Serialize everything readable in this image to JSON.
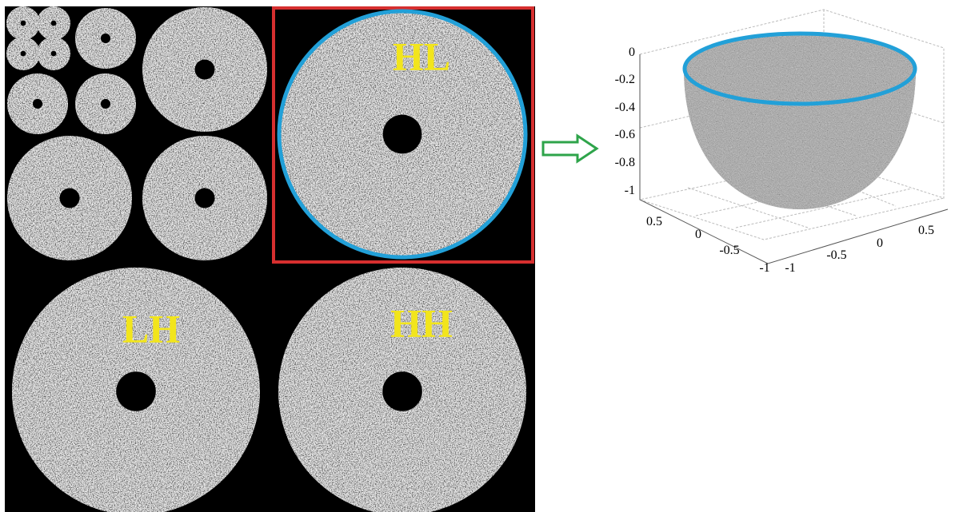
{
  "panels": {
    "hl": "HL",
    "lh": "LH",
    "hh": "HH"
  },
  "plot3d": {
    "z_ticks": [
      "0",
      "-0.2",
      "-0.4",
      "-0.6",
      "-0.8",
      "-1"
    ],
    "x_ticks": [
      "0.5",
      "0",
      "-0.5",
      "-1"
    ],
    "y_ticks": [
      "-1",
      "-0.5",
      "0",
      "0.5"
    ]
  }
}
